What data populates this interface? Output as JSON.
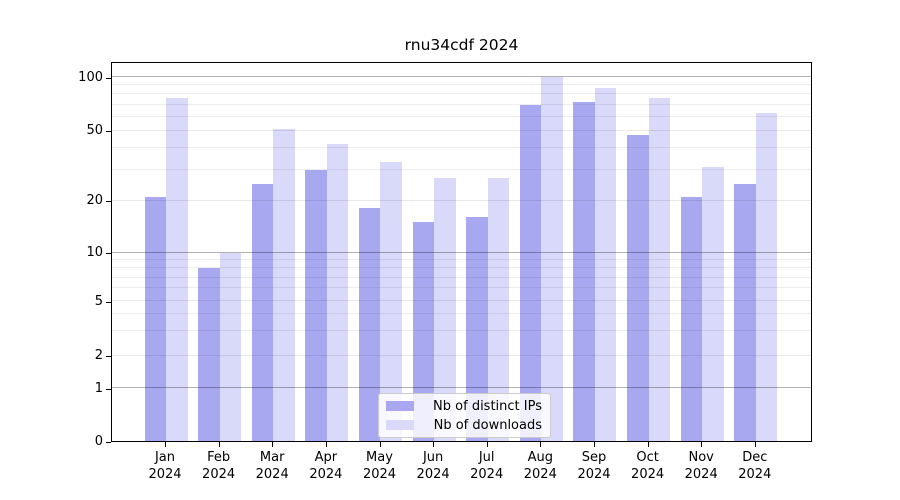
{
  "title": "rnu34cdf 2024",
  "chart_data": {
    "type": "bar",
    "title": "rnu34cdf 2024",
    "subtitle": "",
    "xlabel": "",
    "ylabel": "",
    "categories": [
      "Jan",
      "Feb",
      "Mar",
      "Apr",
      "May",
      "Jun",
      "Jul",
      "Aug",
      "Sep",
      "Oct",
      "Nov",
      "Dec"
    ],
    "year_label": "2024",
    "series": [
      {
        "name": "Nb of distinct IPs",
        "color": "#a8a8f0",
        "values": [
          21,
          8,
          25,
          30,
          18,
          15,
          16,
          70,
          72,
          47,
          21,
          25
        ]
      },
      {
        "name": "Nb of downloads",
        "color": "#d9d9f9",
        "values": [
          76,
          10,
          51,
          42,
          33,
          27,
          27,
          100,
          87,
          76,
          31,
          63
        ]
      }
    ],
    "yticks": [
      0,
      1,
      2,
      5,
      10,
      20,
      50,
      100
    ],
    "minor_yticks": [
      3,
      4,
      6,
      7,
      8,
      9,
      30,
      40,
      60,
      70,
      80,
      90
    ],
    "ylim": [
      0,
      110
    ],
    "yscale": "asinh-like: logarithmic above 1, linear between 0 and 1",
    "grid": "horizontal, drawn over bars; darker lines at 1, 10, 100",
    "legend_position": "bottom-center inside plot",
    "legend_entries": [
      "Nb of distinct IPs",
      "Nb of downloads"
    ]
  }
}
